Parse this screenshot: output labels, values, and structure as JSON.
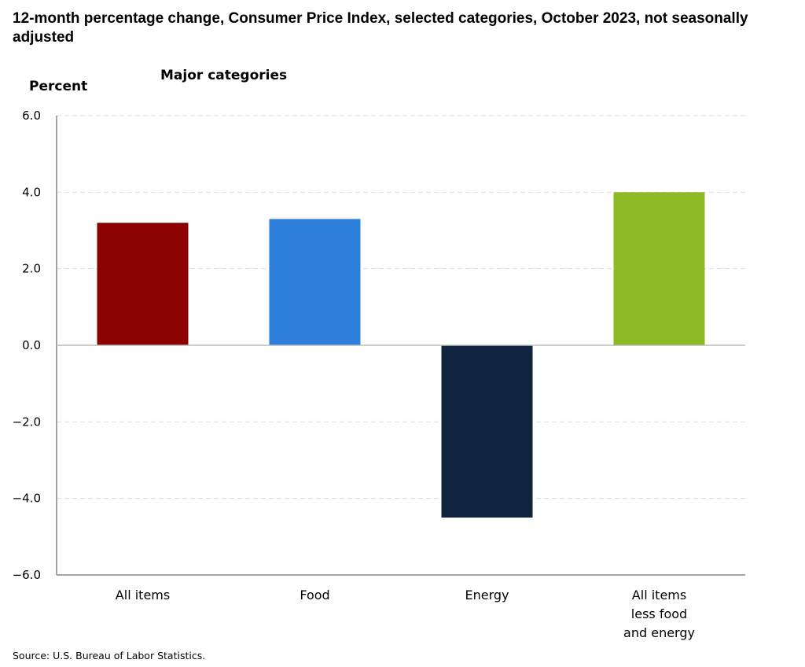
{
  "chart_data": {
    "type": "bar",
    "title": "12-month percentage change, Consumer Price Index, selected categories, October 2023, not seasonally adjusted",
    "subtitle": "Major categories",
    "ylabel": "Percent",
    "xlabel": "",
    "ylim": [
      -6.0,
      6.0
    ],
    "yticks": [
      "6.0",
      "4.0",
      "2.0",
      "0.0",
      "−2.0",
      "−4.0",
      "−6.0"
    ],
    "ytick_values": [
      6,
      4,
      2,
      0,
      -2,
      -4,
      -6
    ],
    "grid": true,
    "categories": [
      [
        "All items"
      ],
      [
        "Food"
      ],
      [
        "Energy"
      ],
      [
        "All items",
        "less food",
        "and energy"
      ]
    ],
    "values": [
      3.2,
      3.3,
      -4.5,
      4.0
    ],
    "colors": [
      "#8B0000",
      "#2E7FD9",
      "#0F253D",
      "#8BBA25"
    ],
    "source": "Source: U.S. Bureau of Labor Statistics."
  }
}
